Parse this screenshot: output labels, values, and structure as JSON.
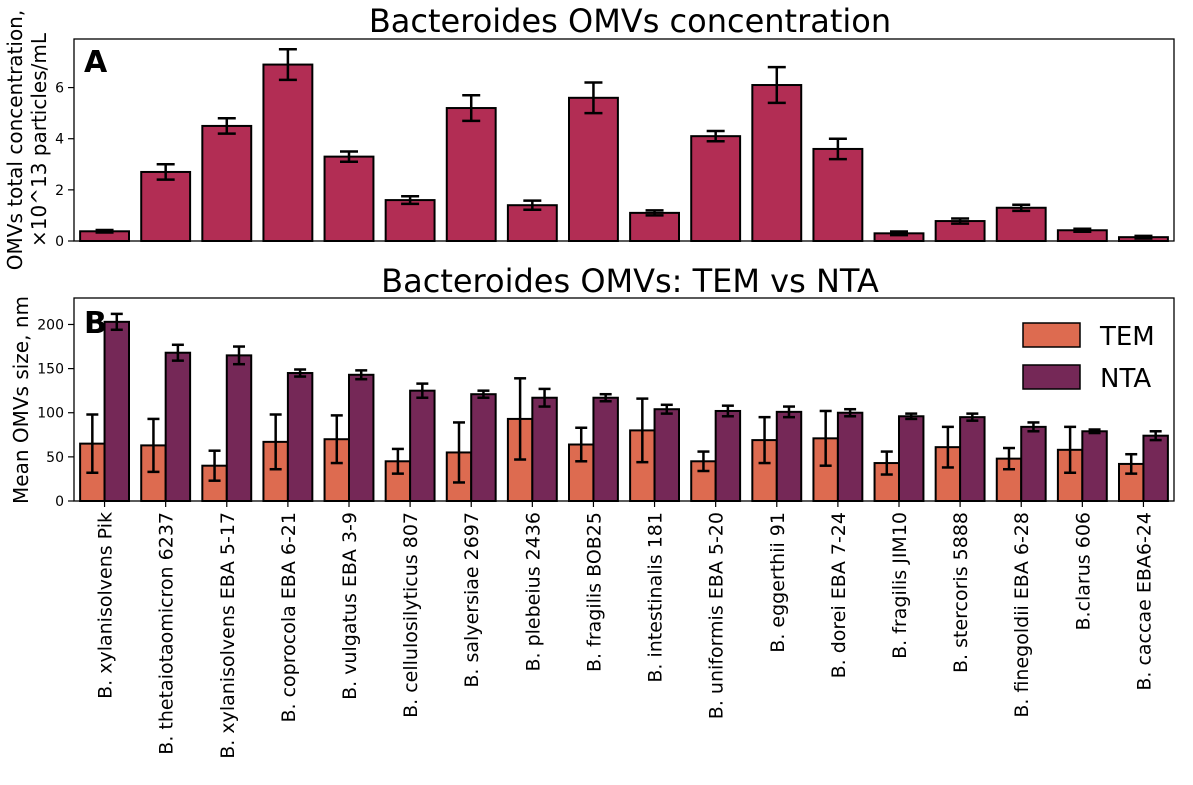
{
  "chart_data": [
    {
      "type": "bar",
      "panel": "A",
      "title": "Bacteroides OMVs concentration",
      "ylabel_lines": [
        "OMVs total concentration,",
        "×10^13 particles/mL"
      ],
      "ylim": [
        0,
        7.9
      ],
      "yticks": [
        0,
        2,
        4,
        6
      ],
      "color": "#b22d54",
      "categories": [
        "B. xylanisolvens Pik",
        "B. thetaiotaomicron 6237",
        "B. xylanisolvens EBA 5-17",
        "B. coprocola EBA 6-21",
        "B. vulgatus EBA 3-9",
        "B. cellulosilyticus 807",
        "B. salyersiae 2697",
        "B. plebeius 2436",
        "B. fragilis BOB25",
        "B. intestinalis 181",
        "B. uniformis EBA 5-20",
        "B. eggerthii 91",
        "B. dorei EBA 7-24",
        "B. fragilis JIM10",
        "B. stercoris 5888",
        "B. finegoldii EBA 6-28",
        "B.clarus 606",
        "B. caccae EBA6-24"
      ],
      "values": [
        0.38,
        2.7,
        4.5,
        6.9,
        3.3,
        1.6,
        5.2,
        1.4,
        5.6,
        1.1,
        4.1,
        6.1,
        3.6,
        0.3,
        0.78,
        1.3,
        0.42,
        0.15
      ],
      "errors": [
        0.05,
        0.3,
        0.3,
        0.6,
        0.2,
        0.15,
        0.5,
        0.18,
        0.6,
        0.1,
        0.2,
        0.7,
        0.4,
        0.07,
        0.1,
        0.12,
        0.06,
        0.05
      ]
    },
    {
      "type": "bar",
      "panel": "B",
      "title": "Bacteroides OMVs: TEM vs NTA",
      "ylabel": "Mean OMVs size, nm",
      "ylim": [
        0,
        230
      ],
      "yticks": [
        0,
        50,
        100,
        150,
        200
      ],
      "legend_position": "top-right",
      "series": [
        {
          "name": "TEM",
          "color": "#dd6b50",
          "values": [
            65,
            63,
            40,
            67,
            70,
            45,
            55,
            93,
            64,
            80,
            45,
            69,
            71,
            43,
            61,
            48,
            58,
            42
          ],
          "errors": [
            33,
            30,
            17,
            31,
            27,
            14,
            34,
            46,
            19,
            36,
            11,
            26,
            31,
            13,
            23,
            12,
            26,
            11
          ]
        },
        {
          "name": "NTA",
          "color": "#752857",
          "values": [
            203,
            168,
            165,
            145,
            143,
            125,
            121,
            117,
            117,
            104,
            102,
            101,
            100,
            96,
            95,
            84,
            79,
            74
          ],
          "errors": [
            9,
            9,
            10,
            4,
            5,
            8,
            4,
            10,
            4,
            5,
            6,
            6,
            4,
            3,
            4,
            5,
            2,
            5
          ]
        }
      ]
    }
  ]
}
